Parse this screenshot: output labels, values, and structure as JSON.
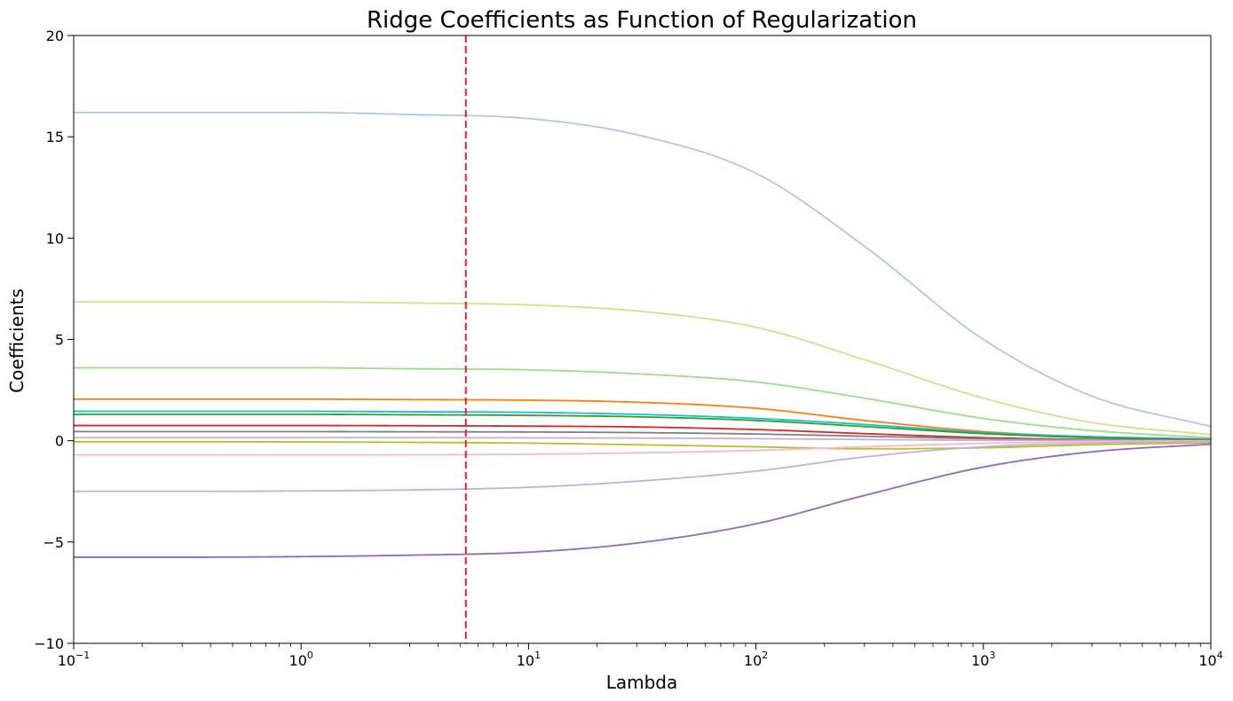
{
  "chart_data": {
    "type": "line",
    "title": "Ridge Coefficients as Function of Regularization",
    "xlabel": "Lambda",
    "ylabel": "Coefficients",
    "xscale": "log",
    "xlim": [
      0.1,
      10000
    ],
    "ylim": [
      -10,
      20
    ],
    "grid": false,
    "legend": "none",
    "x_tick_labels": [
      {
        "value": 0.1,
        "base": "10",
        "exp": "−1"
      },
      {
        "value": 1,
        "base": "10",
        "exp": "0"
      },
      {
        "value": 10,
        "base": "10",
        "exp": "1"
      },
      {
        "value": 100,
        "base": "10",
        "exp": "2"
      },
      {
        "value": 1000,
        "base": "10",
        "exp": "3"
      },
      {
        "value": 10000,
        "base": "10",
        "exp": "4"
      }
    ],
    "y_ticks": [
      -10,
      -5,
      0,
      5,
      10,
      15,
      20
    ],
    "y_tick_labels": [
      "−10",
      "−5",
      "0",
      "5",
      "10",
      "15",
      "20"
    ],
    "reference_line": {
      "x": 5.3,
      "color": "#d62728",
      "style": "dashed"
    },
    "x": [
      0.1,
      0.3,
      1,
      3,
      10,
      30,
      100,
      300,
      1000,
      3000,
      10000
    ],
    "series": [
      {
        "color": "#aec7e8",
        "values": [
          16.2,
          16.2,
          16.2,
          16.1,
          15.9,
          15.1,
          13.2,
          9.6,
          5.0,
          2.2,
          0.7
        ]
      },
      {
        "color": "#dbdb8d",
        "values": [
          6.85,
          6.85,
          6.85,
          6.8,
          6.7,
          6.4,
          5.6,
          4.0,
          2.1,
          0.9,
          0.3
        ]
      },
      {
        "color": "#98df8a",
        "values": [
          3.6,
          3.6,
          3.6,
          3.55,
          3.5,
          3.3,
          2.9,
          2.1,
          1.1,
          0.5,
          0.15
        ]
      },
      {
        "color": "#ff7f0e",
        "values": [
          2.05,
          2.05,
          2.05,
          2.03,
          2.0,
          1.9,
          1.6,
          1.0,
          0.45,
          0.18,
          0.05
        ]
      },
      {
        "color": "#17becf",
        "values": [
          1.45,
          1.45,
          1.45,
          1.43,
          1.4,
          1.3,
          1.1,
          0.8,
          0.4,
          0.2,
          0.08
        ]
      },
      {
        "color": "#2ca02c",
        "values": [
          1.3,
          1.3,
          1.3,
          1.28,
          1.25,
          1.18,
          1.0,
          0.7,
          0.35,
          0.15,
          0.05
        ]
      },
      {
        "color": "#d62728",
        "values": [
          0.75,
          0.75,
          0.75,
          0.74,
          0.72,
          0.68,
          0.55,
          0.35,
          0.15,
          0.06,
          0.02
        ]
      },
      {
        "color": "#7f7f7f",
        "values": [
          0.45,
          0.45,
          0.45,
          0.44,
          0.43,
          0.4,
          0.33,
          0.22,
          0.1,
          0.04,
          0.01
        ]
      },
      {
        "color": "#c5b0d5",
        "values": [
          0.15,
          0.15,
          0.15,
          0.15,
          0.14,
          0.13,
          0.1,
          0.06,
          0.02,
          0.01,
          0.0
        ]
      },
      {
        "color": "#bcbd22",
        "values": [
          -0.05,
          -0.05,
          -0.06,
          -0.08,
          -0.12,
          -0.2,
          -0.3,
          -0.4,
          -0.35,
          -0.2,
          -0.1
        ]
      },
      {
        "color": "#f7b6d2",
        "values": [
          -0.7,
          -0.7,
          -0.7,
          -0.69,
          -0.67,
          -0.6,
          -0.48,
          -0.3,
          -0.13,
          -0.05,
          -0.02
        ]
      },
      {
        "color": "#c5b0d5",
        "values": [
          -2.5,
          -2.5,
          -2.48,
          -2.43,
          -2.3,
          -2.0,
          -1.5,
          -0.8,
          -0.3,
          -0.12,
          -0.04
        ]
      },
      {
        "color": "#9467bd",
        "values": [
          -5.75,
          -5.75,
          -5.72,
          -5.65,
          -5.5,
          -5.05,
          -4.1,
          -2.7,
          -1.3,
          -0.55,
          -0.17
        ]
      }
    ]
  }
}
